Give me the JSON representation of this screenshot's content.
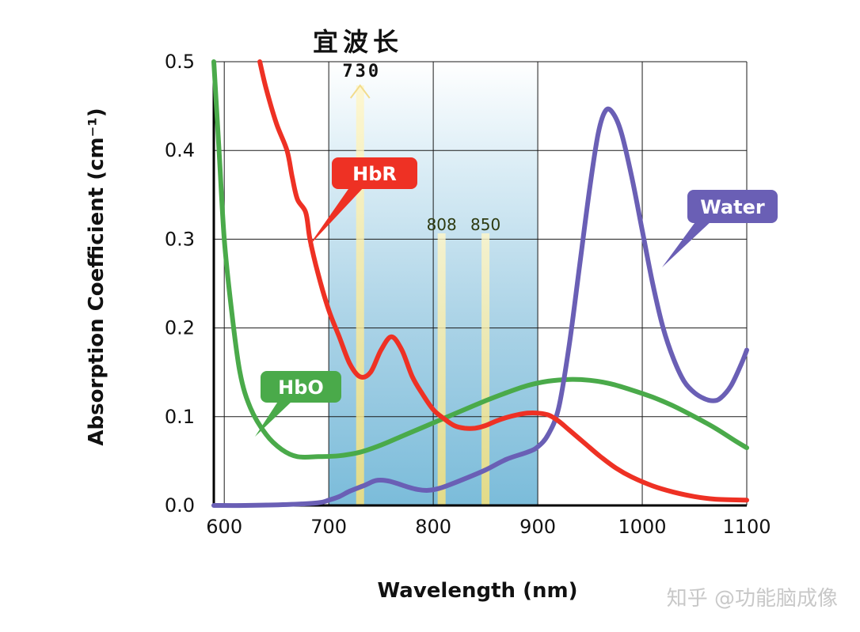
{
  "chart_data": {
    "type": "line",
    "title": "宜波长",
    "xlabel": "Wavelength (nm)",
    "ylabel": "Absorption Coefficient (cm⁻¹)",
    "xlim": [
      590,
      1100
    ],
    "ylim": [
      0,
      0.5
    ],
    "x_ticks": [
      "600",
      "700",
      "800",
      "900",
      "1000",
      "1100"
    ],
    "y_ticks": [
      "0.0",
      "0.1",
      "0.2",
      "0.3",
      "0.4",
      "0.5"
    ],
    "grid": true,
    "highlight_band": {
      "from": 700,
      "to": 900
    },
    "marked_wavelengths": [
      {
        "label": "730",
        "x": 730
      },
      {
        "label": "808",
        "x": 808
      },
      {
        "label": "850",
        "x": 850
      }
    ],
    "series": [
      {
        "name": "HbR",
        "color": "#ee3124",
        "points": [
          [
            634,
            0.5
          ],
          [
            640,
            0.47
          ],
          [
            650,
            0.43
          ],
          [
            660,
            0.4
          ],
          [
            665,
            0.37
          ],
          [
            670,
            0.345
          ],
          [
            678,
            0.33
          ],
          [
            682,
            0.3
          ],
          [
            690,
            0.26
          ],
          [
            700,
            0.22
          ],
          [
            710,
            0.19
          ],
          [
            720,
            0.16
          ],
          [
            730,
            0.145
          ],
          [
            740,
            0.15
          ],
          [
            750,
            0.175
          ],
          [
            760,
            0.19
          ],
          [
            770,
            0.175
          ],
          [
            780,
            0.145
          ],
          [
            790,
            0.125
          ],
          [
            800,
            0.108
          ],
          [
            810,
            0.098
          ],
          [
            820,
            0.09
          ],
          [
            830,
            0.087
          ],
          [
            840,
            0.087
          ],
          [
            850,
            0.09
          ],
          [
            860,
            0.095
          ],
          [
            870,
            0.099
          ],
          [
            880,
            0.102
          ],
          [
            890,
            0.104
          ],
          [
            900,
            0.104
          ],
          [
            910,
            0.102
          ],
          [
            920,
            0.095
          ],
          [
            930,
            0.085
          ],
          [
            945,
            0.07
          ],
          [
            960,
            0.055
          ],
          [
            975,
            0.042
          ],
          [
            990,
            0.032
          ],
          [
            1010,
            0.022
          ],
          [
            1030,
            0.015
          ],
          [
            1050,
            0.01
          ],
          [
            1070,
            0.007
          ],
          [
            1100,
            0.006
          ]
        ]
      },
      {
        "name": "HbO",
        "color": "#4aaa4a",
        "points": [
          [
            590,
            0.5
          ],
          [
            595,
            0.4
          ],
          [
            600,
            0.3
          ],
          [
            607,
            0.22
          ],
          [
            615,
            0.15
          ],
          [
            625,
            0.11
          ],
          [
            640,
            0.08
          ],
          [
            655,
            0.063
          ],
          [
            670,
            0.055
          ],
          [
            690,
            0.055
          ],
          [
            710,
            0.056
          ],
          [
            730,
            0.06
          ],
          [
            750,
            0.068
          ],
          [
            770,
            0.078
          ],
          [
            790,
            0.088
          ],
          [
            810,
            0.098
          ],
          [
            830,
            0.108
          ],
          [
            850,
            0.118
          ],
          [
            870,
            0.127
          ],
          [
            890,
            0.135
          ],
          [
            910,
            0.14
          ],
          [
            930,
            0.142
          ],
          [
            950,
            0.141
          ],
          [
            970,
            0.137
          ],
          [
            990,
            0.13
          ],
          [
            1010,
            0.122
          ],
          [
            1030,
            0.112
          ],
          [
            1050,
            0.1
          ],
          [
            1070,
            0.087
          ],
          [
            1090,
            0.072
          ],
          [
            1100,
            0.065
          ]
        ]
      },
      {
        "name": "Water",
        "color": "#6a5fb5",
        "points": [
          [
            590,
            0.0
          ],
          [
            620,
            0.0
          ],
          [
            660,
            0.001
          ],
          [
            690,
            0.003
          ],
          [
            700,
            0.006
          ],
          [
            710,
            0.01
          ],
          [
            720,
            0.016
          ],
          [
            735,
            0.023
          ],
          [
            745,
            0.028
          ],
          [
            755,
            0.028
          ],
          [
            765,
            0.025
          ],
          [
            775,
            0.021
          ],
          [
            785,
            0.018
          ],
          [
            795,
            0.017
          ],
          [
            805,
            0.019
          ],
          [
            815,
            0.023
          ],
          [
            830,
            0.03
          ],
          [
            850,
            0.04
          ],
          [
            870,
            0.052
          ],
          [
            890,
            0.06
          ],
          [
            900,
            0.066
          ],
          [
            910,
            0.08
          ],
          [
            920,
            0.11
          ],
          [
            930,
            0.18
          ],
          [
            940,
            0.27
          ],
          [
            950,
            0.36
          ],
          [
            958,
            0.42
          ],
          [
            965,
            0.445
          ],
          [
            972,
            0.442
          ],
          [
            980,
            0.42
          ],
          [
            990,
            0.37
          ],
          [
            1000,
            0.31
          ],
          [
            1010,
            0.25
          ],
          [
            1020,
            0.2
          ],
          [
            1030,
            0.165
          ],
          [
            1040,
            0.14
          ],
          [
            1050,
            0.127
          ],
          [
            1060,
            0.12
          ],
          [
            1068,
            0.118
          ],
          [
            1075,
            0.121
          ],
          [
            1085,
            0.135
          ],
          [
            1095,
            0.16
          ],
          [
            1100,
            0.175
          ]
        ]
      }
    ],
    "callouts": [
      "HbR",
      "HbO",
      "Water"
    ]
  },
  "watermark": "知乎 @功能脑成像"
}
